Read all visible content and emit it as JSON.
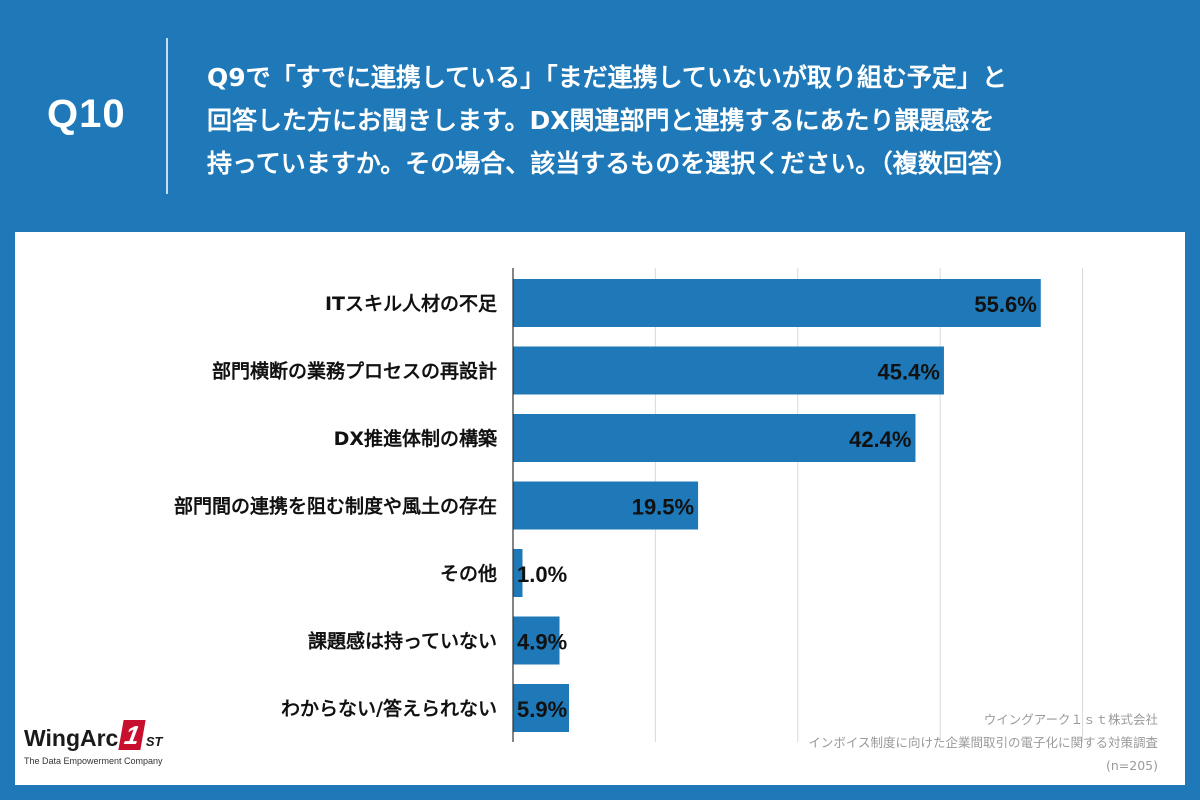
{
  "header": {
    "question_number": "Q10",
    "question_lines": [
      "Q9で「すでに連携している」「まだ連携していないが取り組む予定」と",
      "回答した方にお聞きします。DX関連部門と連携するにあたり課題感を",
      "持っていますか。その場合、該当するものを選択ください。（複数回答）"
    ]
  },
  "colors": {
    "background": "#1f78b7",
    "bar": "#1f78b7",
    "grid": "#d9d9d9",
    "panel": "#ffffff"
  },
  "chart_data": {
    "type": "bar",
    "orientation": "horizontal",
    "categories": [
      "ITスキル人材の不足",
      "部門横断の業務プロセスの再設計",
      "DX推進体制の構築",
      "部門間の連携を阻む制度や風土の存在",
      "その他",
      "課題感は持っていない",
      "わからない/答えられない"
    ],
    "values": [
      55.6,
      45.4,
      42.4,
      19.5,
      1.0,
      4.9,
      5.9
    ],
    "value_labels": [
      "55.6%",
      "45.4%",
      "42.4%",
      "19.5%",
      "1.0%",
      "4.9%",
      "5.9%"
    ],
    "xlim": [
      0,
      65
    ],
    "grid": true,
    "gridlines": [
      0,
      15,
      30,
      45,
      60
    ]
  },
  "logo": {
    "brand": "WingArc",
    "mark": "1",
    "suffix": "ST",
    "tagline": "The Data Empowerment Company"
  },
  "source": {
    "company": "ウイングアーク１ｓｔ株式会社",
    "survey": "インボイス制度に向けた企業間取引の電子化に関する対策調査",
    "sample": "(n=205)"
  }
}
